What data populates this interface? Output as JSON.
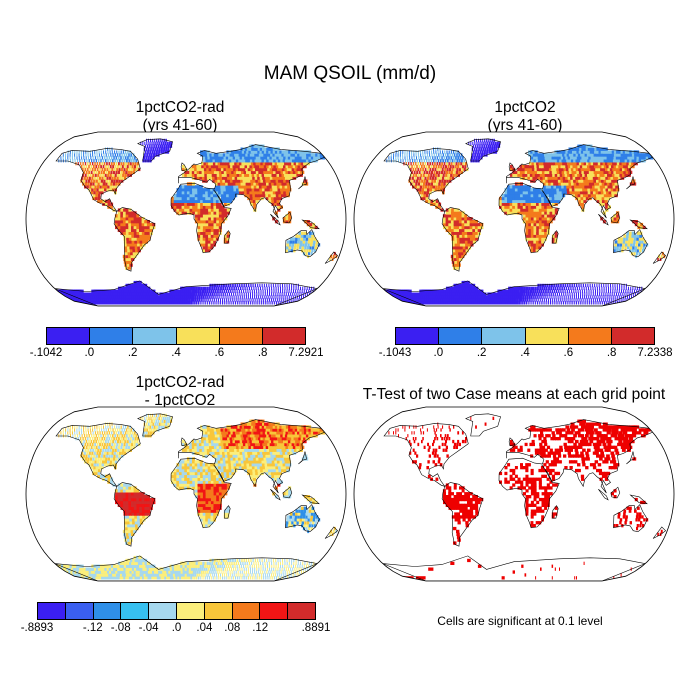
{
  "title": "MAM QSOIL (mm/d)",
  "panels": [
    {
      "id": "p1",
      "title_line1": "1pctCO2-rad",
      "title_line2": "(yrs 41-60)",
      "kind": "scalar",
      "colorbar_colors": [
        "#3b1ff2",
        "#2f7fe8",
        "#7ec3ea",
        "#f8e05a",
        "#f47a1c",
        "#d22b2b"
      ],
      "colorbar_labels": [
        "-.1042",
        ".0",
        ".2",
        ".4",
        ".6",
        ".8",
        "7.2921"
      ]
    },
    {
      "id": "p2",
      "title_line1": "1pctCO2",
      "title_line2": "(yrs 41-60)",
      "kind": "scalar",
      "colorbar_colors": [
        "#3b1ff2",
        "#2f7fe8",
        "#7ec3ea",
        "#f8e05a",
        "#f47a1c",
        "#d22b2b"
      ],
      "colorbar_labels": [
        "-.1043",
        ".0",
        ".2",
        ".4",
        ".6",
        ".8",
        "7.2338"
      ]
    },
    {
      "id": "p3",
      "title_line1": "1pctCO2-rad",
      "title_line2": "- 1pctCO2",
      "kind": "difference",
      "colorbar_colors": [
        "#3b1ff2",
        "#3a5ff0",
        "#2f8fe8",
        "#37c0f0",
        "#a6d8ee",
        "#fbee7c",
        "#f8c63a",
        "#f47a1c",
        "#f11515",
        "#d22b2b"
      ],
      "colorbar_labels": [
        "-.8893",
        "",
        "-.12",
        "-.08",
        "-.04",
        ".0",
        ".04",
        ".08",
        ".12",
        "",
        ".8891"
      ]
    },
    {
      "id": "p4",
      "title_line1": "T-Test of two Case means at each grid point",
      "title_line2": "",
      "kind": "significance",
      "significance_color": "#ee0000",
      "note": "Cells are significant at 0.1 level"
    }
  ]
}
